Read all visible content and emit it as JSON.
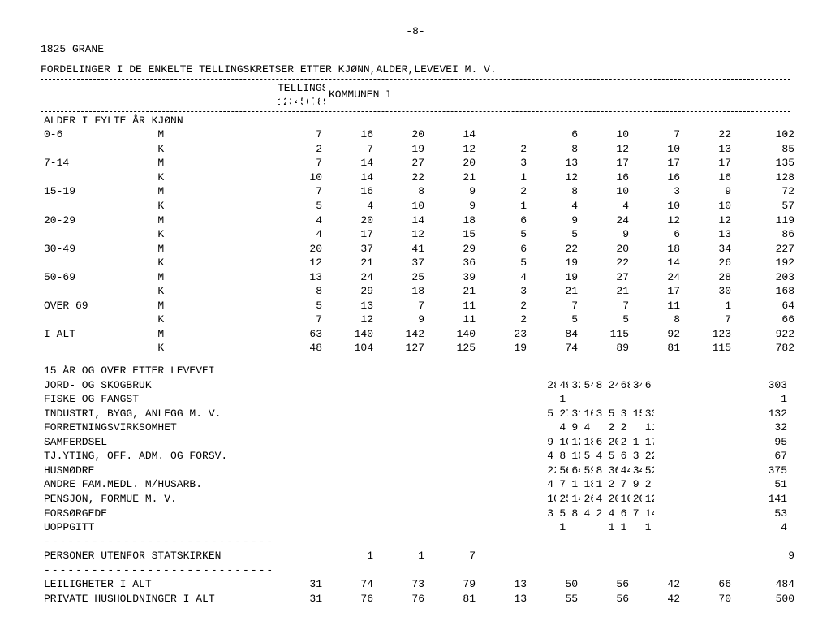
{
  "page_number": "-8-",
  "municipality": "1825 GRANE",
  "title": "FORDELINGER I DE ENKELTE TELLINGSKRETSER ETTER KJØNN,ALDER,LEVEVEI M. V.",
  "krets_header": "TELLINGSKRETS NR.",
  "total_header": "KOMMUNEN I ALT",
  "columns": [
    "1",
    "2",
    "3",
    "4",
    "5",
    "6",
    "7",
    "8",
    "9"
  ],
  "age_header": "ALDER I FYLTE ÅR   KJØNN",
  "age_rows": [
    {
      "label": "0-6",
      "sex": "M",
      "v": [
        "7",
        "16",
        "20",
        "14",
        "",
        "6",
        "10",
        "7",
        "22",
        "102"
      ]
    },
    {
      "label": "",
      "sex": "K",
      "v": [
        "2",
        "7",
        "19",
        "12",
        "2",
        "8",
        "12",
        "10",
        "13",
        "85"
      ]
    },
    {
      "label": "7-14",
      "sex": "M",
      "v": [
        "7",
        "14",
        "27",
        "20",
        "3",
        "13",
        "17",
        "17",
        "17",
        "135"
      ]
    },
    {
      "label": "",
      "sex": "K",
      "v": [
        "10",
        "14",
        "22",
        "21",
        "1",
        "12",
        "16",
        "16",
        "16",
        "128"
      ]
    },
    {
      "label": "15-19",
      "sex": "M",
      "v": [
        "7",
        "16",
        "8",
        "9",
        "2",
        "8",
        "10",
        "3",
        "9",
        "72"
      ]
    },
    {
      "label": "",
      "sex": "K",
      "v": [
        "5",
        "4",
        "10",
        "9",
        "1",
        "4",
        "4",
        "10",
        "10",
        "57"
      ]
    },
    {
      "label": "20-29",
      "sex": "M",
      "v": [
        "4",
        "20",
        "14",
        "18",
        "6",
        "9",
        "24",
        "12",
        "12",
        "119"
      ]
    },
    {
      "label": "",
      "sex": "K",
      "v": [
        "4",
        "17",
        "12",
        "15",
        "5",
        "5",
        "9",
        "6",
        "13",
        "86"
      ]
    },
    {
      "label": "30-49",
      "sex": "M",
      "v": [
        "20",
        "37",
        "41",
        "29",
        "6",
        "22",
        "20",
        "18",
        "34",
        "227"
      ]
    },
    {
      "label": "",
      "sex": "K",
      "v": [
        "12",
        "21",
        "37",
        "36",
        "5",
        "19",
        "22",
        "14",
        "26",
        "192"
      ]
    },
    {
      "label": "50-69",
      "sex": "M",
      "v": [
        "13",
        "24",
        "25",
        "39",
        "4",
        "19",
        "27",
        "24",
        "28",
        "203"
      ]
    },
    {
      "label": "",
      "sex": "K",
      "v": [
        "8",
        "29",
        "18",
        "21",
        "3",
        "21",
        "21",
        "17",
        "30",
        "168"
      ]
    },
    {
      "label": "OVER 69",
      "sex": "M",
      "v": [
        "5",
        "13",
        "7",
        "11",
        "2",
        "7",
        "7",
        "11",
        "1",
        "64"
      ]
    },
    {
      "label": "",
      "sex": "K",
      "v": [
        "7",
        "12",
        "9",
        "11",
        "2",
        "5",
        "5",
        "8",
        "7",
        "66"
      ]
    },
    {
      "label": "I ALT",
      "sex": "M",
      "v": [
        "63",
        "140",
        "142",
        "140",
        "23",
        "84",
        "115",
        "92",
        "123",
        "922"
      ]
    },
    {
      "label": "",
      "sex": "K",
      "v": [
        "48",
        "104",
        "127",
        "125",
        "19",
        "74",
        "89",
        "81",
        "115",
        "782"
      ]
    }
  ],
  "leve_header": "15 ÅR OG OVER ETTER LEVEVEI",
  "leve_rows": [
    {
      "label": "JORD- OG SKOGBRUK",
      "v": [
        "28",
        "49",
        "32",
        "54",
        "8",
        "24",
        "68",
        "34",
        "6",
        "303"
      ]
    },
    {
      "label": "FISKE OG FANGST",
      "v": [
        "",
        "1",
        "",
        "",
        "",
        "",
        "",
        "",
        "",
        "1"
      ]
    },
    {
      "label": "INDUSTRI, BYGG, ANLEGG M. V.",
      "v": [
        "5",
        "27",
        "31",
        "10",
        "3",
        "5",
        "3",
        "15",
        "33",
        "132"
      ]
    },
    {
      "label": "FORRETNINGSVIRKSOMHET",
      "v": [
        "",
        "4",
        "9",
        "4",
        "",
        "2",
        "2",
        "",
        "11",
        "32"
      ]
    },
    {
      "label": "SAMFERDSEL",
      "v": [
        "9",
        "10",
        "12",
        "18",
        "6",
        "20",
        "2",
        "1",
        "17",
        "95"
      ]
    },
    {
      "label": "TJ.YTING, OFF. ADM. OG FORSV.",
      "v": [
        "4",
        "8",
        "10",
        "5",
        "4",
        "5",
        "6",
        "3",
        "22",
        "67"
      ]
    },
    {
      "label": "HUSMØDRE",
      "v": [
        "22",
        "56",
        "64",
        "59",
        "8",
        "36",
        "44",
        "34",
        "52",
        "375"
      ]
    },
    {
      "label": "ANDRE FAM.MEDL. M/HUSARB.",
      "v": [
        "4",
        "7",
        "1",
        "18",
        "1",
        "2",
        "7",
        "9",
        "2",
        "51"
      ]
    },
    {
      "label": "PENSJON, FORMUE M. V.",
      "v": [
        "10",
        "25",
        "14",
        "26",
        "4",
        "20",
        "10",
        "20",
        "12",
        "141"
      ]
    },
    {
      "label": "FORSØRGEDE",
      "v": [
        "3",
        "5",
        "8",
        "4",
        "2",
        "4",
        "6",
        "7",
        "14",
        "53"
      ]
    },
    {
      "label": "UOPPGITT",
      "v": [
        "",
        "1",
        "",
        "",
        "",
        "1",
        "1",
        "",
        "1",
        "4"
      ]
    }
  ],
  "dash_sub": "-----------------------------",
  "stats_row": {
    "label": "PERSONER UTENFOR STATSKIRKEN",
    "v": [
      "",
      "1",
      "1",
      "7",
      "",
      "",
      "",
      "",
      "",
      "9"
    ]
  },
  "bottom_rows": [
    {
      "label": "LEILIGHETER I ALT",
      "v": [
        "31",
        "74",
        "73",
        "79",
        "13",
        "50",
        "56",
        "42",
        "66",
        "484"
      ]
    },
    {
      "label": "PRIVATE HUSHOLDNINGER I ALT",
      "v": [
        "31",
        "76",
        "76",
        "81",
        "13",
        "55",
        "56",
        "42",
        "70",
        "500"
      ]
    }
  ]
}
